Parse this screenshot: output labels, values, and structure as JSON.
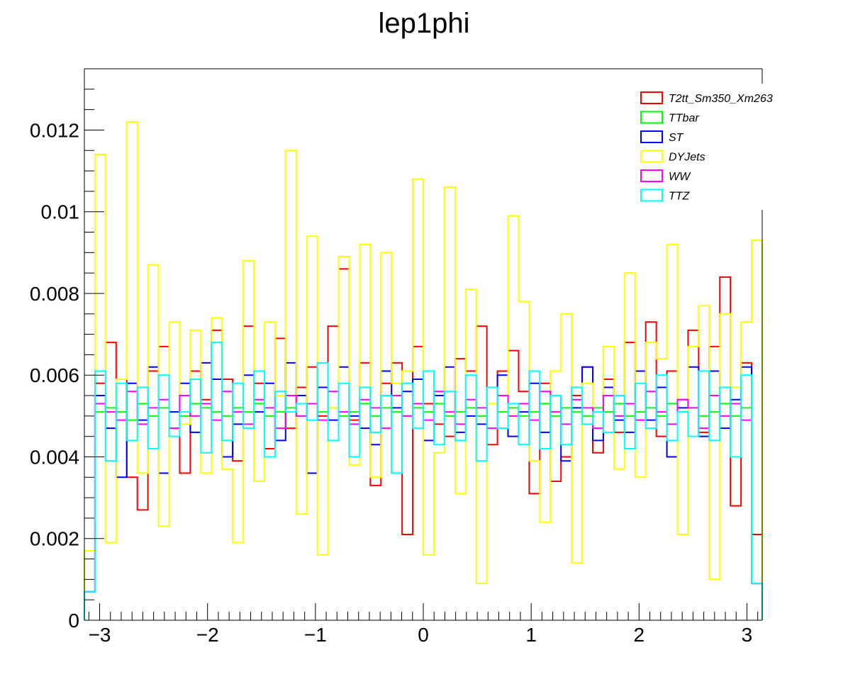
{
  "chart_data": {
    "type": "step",
    "title": "lep1phi",
    "xlabel": "",
    "ylabel": "",
    "xlim": [
      -3.1416,
      3.1416
    ],
    "ylim": [
      0,
      0.0135
    ],
    "x_ticks": [
      -3,
      -2,
      -1,
      0,
      1,
      2,
      3
    ],
    "x_tick_labels": [
      "−3",
      "−2",
      "−1",
      "0",
      "1",
      "2",
      "3"
    ],
    "y_ticks": [
      0,
      0.002,
      0.004,
      0.006,
      0.008,
      0.01,
      0.012
    ],
    "y_tick_labels": [
      "0",
      "0.002",
      "0.004",
      "0.006",
      "0.008",
      "0.01",
      "0.012"
    ],
    "n_bins": 64,
    "grid": false,
    "legend_position": "top-right",
    "series": [
      {
        "name": "T2tt_Sm350_Xm263",
        "color": "#ff0000",
        "values": [
          0.0007,
          0.0058,
          0.0068,
          0.0059,
          0.0035,
          0.0027,
          0.0061,
          0.0067,
          0.0047,
          0.0036,
          0.0061,
          0.0054,
          0.0071,
          0.0059,
          0.0039,
          0.0072,
          0.0058,
          0.0042,
          0.0069,
          0.0047,
          0.0057,
          0.0062,
          0.005,
          0.0072,
          0.0086,
          0.0049,
          0.0063,
          0.0033,
          0.0058,
          0.0063,
          0.0021,
          0.0067,
          0.0053,
          0.0048,
          0.0045,
          0.0064,
          0.0061,
          0.0072,
          0.0043,
          0.0061,
          0.0066,
          0.0056,
          0.0031,
          0.0058,
          0.0034,
          0.004,
          0.0055,
          0.0062,
          0.0041,
          0.0059,
          0.0046,
          0.0068,
          0.0049,
          0.0073,
          0.0045,
          0.0061,
          0.0054,
          0.0071,
          0.0046,
          0.0067,
          0.0084,
          0.0028,
          0.0063,
          0.0021
        ]
      },
      {
        "name": "TTbar",
        "color": "#00ff00",
        "values": [
          0.0007,
          0.0051,
          0.0052,
          0.0051,
          0.0049,
          0.0053,
          0.005,
          0.0052,
          0.0051,
          0.005,
          0.0053,
          0.0052,
          0.0051,
          0.005,
          0.0052,
          0.0051,
          0.0053,
          0.005,
          0.0051,
          0.0052,
          0.005,
          0.0053,
          0.0051,
          0.0052,
          0.005,
          0.0051,
          0.0053,
          0.005,
          0.0052,
          0.0051,
          0.005,
          0.0052,
          0.0051,
          0.0053,
          0.005,
          0.0051,
          0.0052,
          0.005,
          0.0053,
          0.0051,
          0.0052,
          0.005,
          0.0051,
          0.0053,
          0.005,
          0.0052,
          0.0051,
          0.005,
          0.0052,
          0.0051,
          0.0053,
          0.005,
          0.0051,
          0.0052,
          0.005,
          0.0053,
          0.0051,
          0.0052,
          0.005,
          0.0051,
          0.0053,
          0.005,
          0.0052,
          0.0009
        ]
      },
      {
        "name": "ST",
        "color": "#0000ff",
        "values": [
          0.0007,
          0.0055,
          0.0047,
          0.0035,
          0.0058,
          0.0049,
          0.0062,
          0.0036,
          0.0051,
          0.0058,
          0.0046,
          0.0063,
          0.0059,
          0.004,
          0.0048,
          0.006,
          0.0051,
          0.0058,
          0.0044,
          0.0063,
          0.0055,
          0.0036,
          0.0057,
          0.0049,
          0.0062,
          0.005,
          0.0047,
          0.0043,
          0.0061,
          0.0052,
          0.0056,
          0.0059,
          0.0044,
          0.0055,
          0.0062,
          0.0046,
          0.005,
          0.0048,
          0.0053,
          0.006,
          0.0045,
          0.0051,
          0.0058,
          0.0046,
          0.0055,
          0.0039,
          0.0052,
          0.0062,
          0.0044,
          0.0057,
          0.0049,
          0.0046,
          0.0061,
          0.0049,
          0.0057,
          0.004,
          0.0052,
          0.0062,
          0.0045,
          0.0061,
          0.0047,
          0.0054,
          0.0062,
          0.0009
        ]
      },
      {
        "name": "DYJets",
        "color": "#ffff00",
        "values": [
          0.0017,
          0.0114,
          0.0019,
          0.0059,
          0.0122,
          0.0036,
          0.0087,
          0.0023,
          0.0073,
          0.0048,
          0.0071,
          0.0036,
          0.0074,
          0.0037,
          0.0019,
          0.0088,
          0.0034,
          0.0073,
          0.0055,
          0.0115,
          0.0026,
          0.0094,
          0.0016,
          0.0052,
          0.0089,
          0.0038,
          0.0092,
          0.0035,
          0.009,
          0.0058,
          0.0061,
          0.0108,
          0.0016,
          0.0041,
          0.0106,
          0.0031,
          0.0081,
          0.0009,
          0.0053,
          0.0047,
          0.0099,
          0.0078,
          0.0039,
          0.0024,
          0.0061,
          0.0075,
          0.0014,
          0.0058,
          0.0051,
          0.0067,
          0.0037,
          0.0085,
          0.0035,
          0.0068,
          0.0064,
          0.0092,
          0.0021,
          0.0067,
          0.0077,
          0.001,
          0.0075,
          0.0057,
          0.0073,
          0.0093
        ]
      },
      {
        "name": "WW",
        "color": "#ff00ff",
        "values": [
          0.0007,
          0.0053,
          0.0051,
          0.0049,
          0.0056,
          0.0048,
          0.0052,
          0.0054,
          0.0047,
          0.0055,
          0.005,
          0.0053,
          0.0049,
          0.0056,
          0.0051,
          0.0048,
          0.0054,
          0.0052,
          0.0047,
          0.0055,
          0.005,
          0.0053,
          0.0049,
          0.0056,
          0.0051,
          0.0048,
          0.0054,
          0.0052,
          0.0047,
          0.0055,
          0.005,
          0.0053,
          0.0049,
          0.0056,
          0.0051,
          0.0048,
          0.0054,
          0.0052,
          0.0047,
          0.0055,
          0.005,
          0.0053,
          0.0049,
          0.0056,
          0.0051,
          0.0048,
          0.0054,
          0.0052,
          0.0047,
          0.0055,
          0.005,
          0.0053,
          0.0049,
          0.0056,
          0.0051,
          0.0048,
          0.0054,
          0.0052,
          0.0047,
          0.0055,
          0.005,
          0.0053,
          0.0049,
          0.0009
        ]
      },
      {
        "name": "TTZ",
        "color": "#00ffff",
        "values": [
          0.0007,
          0.0061,
          0.0039,
          0.0058,
          0.0044,
          0.0057,
          0.0042,
          0.006,
          0.0045,
          0.0051,
          0.0059,
          0.0041,
          0.0068,
          0.0044,
          0.0058,
          0.0047,
          0.0061,
          0.004,
          0.0056,
          0.0051,
          0.0053,
          0.0049,
          0.0063,
          0.0044,
          0.0058,
          0.004,
          0.0057,
          0.0046,
          0.0055,
          0.0036,
          0.0058,
          0.0047,
          0.0061,
          0.0043,
          0.0056,
          0.0044,
          0.006,
          0.0039,
          0.0057,
          0.0047,
          0.0053,
          0.0043,
          0.0061,
          0.0042,
          0.0055,
          0.0043,
          0.0057,
          0.0048,
          0.0051,
          0.0046,
          0.0055,
          0.0042,
          0.0058,
          0.0047,
          0.006,
          0.0044,
          0.0051,
          0.0045,
          0.0061,
          0.0044,
          0.0057,
          0.004,
          0.006,
          0.0009
        ]
      }
    ]
  }
}
